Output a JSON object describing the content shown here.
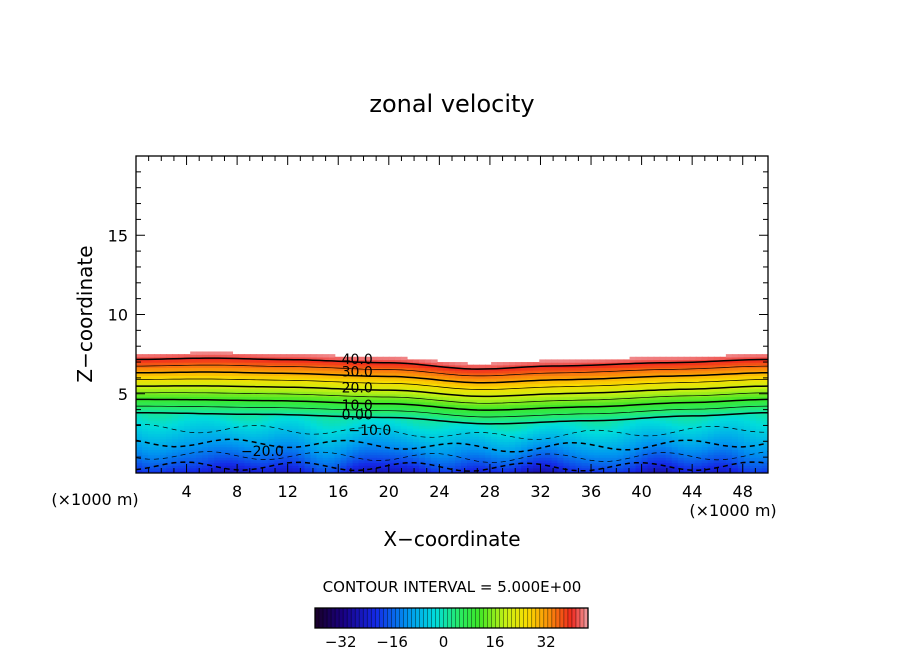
{
  "chart_data": {
    "type": "contour",
    "title": "zonal velocity",
    "xlabel": "X−coordinate",
    "ylabel": "Z−coordinate",
    "x_unit_left": "(×1000 m)",
    "x_unit_right": "(×1000 m)",
    "xlim": [
      0,
      50
    ],
    "ylim": [
      0,
      20
    ],
    "x_ticks": [
      "4",
      "8",
      "12",
      "16",
      "20",
      "24",
      "28",
      "32",
      "36",
      "40",
      "44",
      "48"
    ],
    "y_ticks": [
      "5",
      "10",
      "15"
    ],
    "contour_interval_label": "CONTOUR INTERVAL = 5.000E+00",
    "contour_levels": [
      -20,
      -15,
      -10,
      -5,
      0,
      5,
      10,
      15,
      20,
      25,
      30,
      35,
      40
    ],
    "contour_labels": [
      {
        "text": "40.0",
        "x": 17.5,
        "z": 7.2
      },
      {
        "text": "30.0",
        "x": 17.5,
        "z": 6.4
      },
      {
        "text": "20.0",
        "x": 17.5,
        "z": 5.4
      },
      {
        "text": "10.0",
        "x": 17.5,
        "z": 4.3
      },
      {
        "text": "0.00",
        "x": 17.5,
        "z": 3.7
      },
      {
        "text": "−10.0",
        "x": 18.5,
        "z": 2.7
      },
      {
        "text": "−20.0",
        "x": 10.0,
        "z": 1.4
      }
    ],
    "fields": {
      "top_of_flow_z": [
        [
          0,
          7.5
        ],
        [
          6,
          7.6
        ],
        [
          12,
          7.5
        ],
        [
          20,
          7.3
        ],
        [
          27,
          6.9
        ],
        [
          33,
          7.1
        ],
        [
          42,
          7.3
        ],
        [
          50,
          7.5
        ]
      ],
      "zero_contour_z": [
        [
          0,
          3.8
        ],
        [
          10,
          3.7
        ],
        [
          20,
          3.5
        ],
        [
          28,
          3.1
        ],
        [
          36,
          3.3
        ],
        [
          44,
          3.6
        ],
        [
          50,
          3.8
        ]
      ]
    },
    "colorbar": {
      "min": -40,
      "max": 45,
      "ticks": [
        "−32",
        "−16",
        "0",
        "16",
        "32"
      ],
      "tick_values": [
        -32,
        -16,
        0,
        16,
        32
      ]
    },
    "grid": false,
    "legend": "colorbar at bottom"
  }
}
